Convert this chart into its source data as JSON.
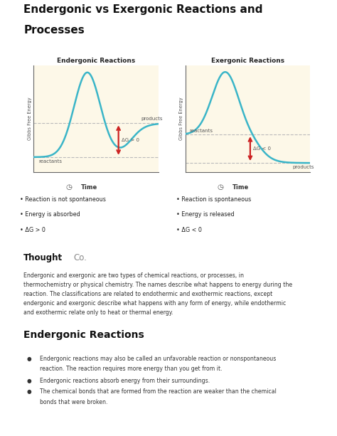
{
  "title_line1": "Endergonic vs Exergonic Reactions and",
  "title_line2": "Processes",
  "title_fontsize": 11,
  "bg_color": "#ffffff",
  "diagram_bg": "#fdf8e8",
  "curve_color": "#3ab5c8",
  "arrow_color": "#cc2222",
  "grid_line_color": "#bbbbbb",
  "ender_title": "Endergonic Reactions",
  "exer_title": "Exergonic Reactions",
  "ylabel": "Gibbs Free Energy",
  "xlabel": "Time",
  "ender_bullet1": "Reaction is not spontaneous",
  "ender_bullet2": "Energy is absorbed",
  "ender_bullet3": "ΔG > 0",
  "exer_bullet1": "Reaction is spontaneous",
  "exer_bullet2": "Energy is released",
  "exer_bullet3": "ΔG < 0",
  "ender_reactants": "reactants",
  "ender_products": "products",
  "ender_dg": "ΔG > 0",
  "exer_reactants": "reactants",
  "exer_products": "products",
  "exer_dg": "ΔG < 0",
  "body_text": "Endergonic and exergonic are two types of chemical reactions, or processes, in\nthermochemistry or physical chemistry. The names describe what happens to energy during the\nreaction. The classifications are related to endothermic and exothermic reactions, except\nendergonic and exergonic describe what happens with any form of energy, while endothermic\nand exothermic relate only to heat or thermal energy.",
  "section_title": "Endergonic Reactions",
  "bullet1a": "Endergonic reactions may also be called an unfavorable reaction or nonspontaneous",
  "bullet1b": "reaction. The reaction requires more energy than you get from it.",
  "bullet2": "Endergonic reactions absorb energy from their surroundings.",
  "bullet3a": "The chemical bonds that are formed from the reaction are weaker than the chemical",
  "bullet3b": "bonds that were broken.",
  "thoughtco_bold": "Thought",
  "thoughtco_light": "Co.",
  "text_color": "#222222",
  "body_color": "#333333"
}
